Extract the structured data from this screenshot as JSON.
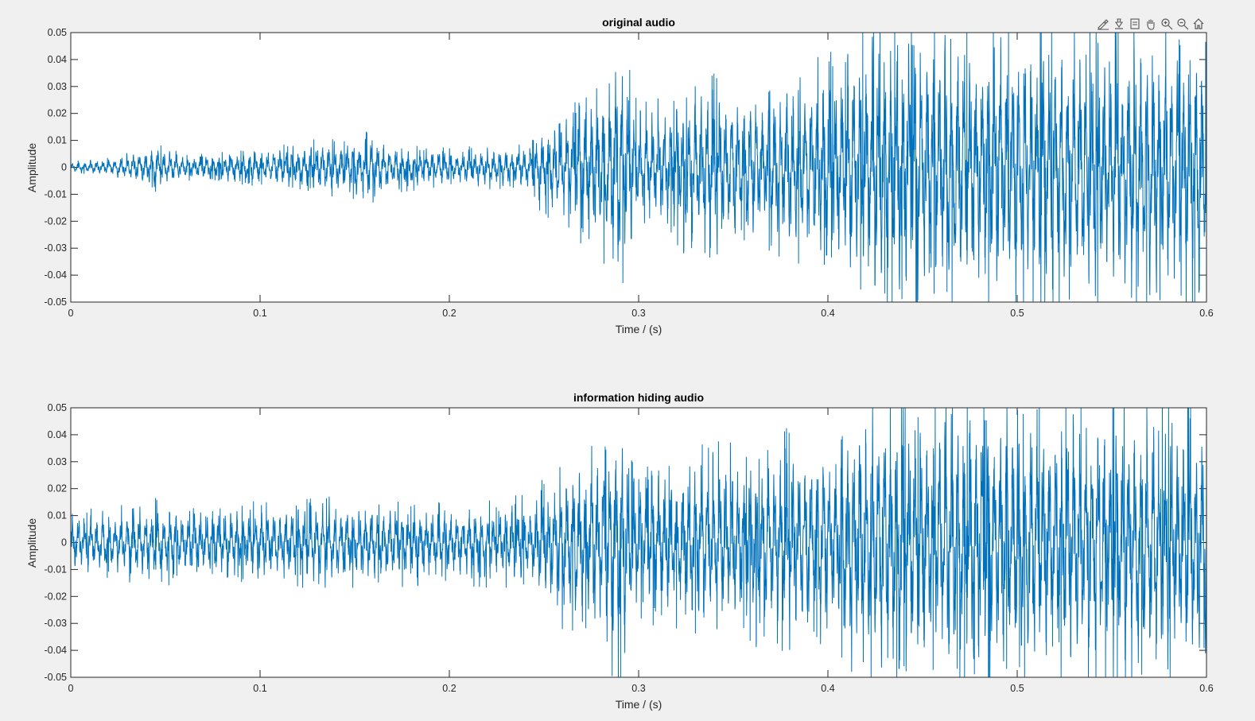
{
  "toolbar": {
    "items": [
      {
        "icon": "brush-icon",
        "label": "Brush/Select data"
      },
      {
        "icon": "data-tips-icon",
        "label": "Data tips"
      },
      {
        "icon": "legend-icon",
        "label": "Insert legend"
      },
      {
        "icon": "pan-icon",
        "label": "Pan"
      },
      {
        "icon": "zoom-in-icon",
        "label": "Zoom in"
      },
      {
        "icon": "zoom-out-icon",
        "label": "Zoom out"
      },
      {
        "icon": "home-icon",
        "label": "Restore view"
      }
    ]
  },
  "colors": {
    "line": "#0072bd",
    "axes_bg": "#ffffff",
    "figure_bg": "#f0f0f0",
    "axis": "#262626"
  },
  "chart_data": [
    {
      "type": "line",
      "title": "original audio",
      "xlabel": "Time / (s)",
      "ylabel": "Amplitude",
      "xlim": [
        0,
        0.6
      ],
      "ylim": [
        -0.05,
        0.05
      ],
      "xticks": [
        0,
        0.1,
        0.2,
        0.3,
        0.4,
        0.5,
        0.6
      ],
      "xtick_labels": [
        "0",
        "0.1",
        "0.2",
        "0.3",
        "0.4",
        "0.5",
        "0.6"
      ],
      "yticks": [
        0.05,
        0.04,
        0.03,
        0.02,
        0.01,
        0,
        -0.01,
        -0.02,
        -0.03,
        -0.04,
        -0.05
      ],
      "ytick_labels": [
        "0.05",
        "0.04",
        "0.03",
        "0.02",
        "0.01",
        "0",
        "-0.01",
        "-0.02",
        "-0.03",
        "-0.04",
        "-0.05"
      ],
      "series": [
        {
          "name": "original audio",
          "envelope_time": [
            0,
            0.02,
            0.04,
            0.045,
            0.06,
            0.1,
            0.14,
            0.16,
            0.17,
            0.2,
            0.24,
            0.25,
            0.26,
            0.28,
            0.29,
            0.3,
            0.31,
            0.33,
            0.35,
            0.4,
            0.42,
            0.45,
            0.5,
            0.55,
            0.6
          ],
          "envelope_amp": [
            0.002,
            0.003,
            0.007,
            0.008,
            0.004,
            0.006,
            0.01,
            0.012,
            0.008,
            0.006,
            0.008,
            0.015,
            0.018,
            0.03,
            0.045,
            0.02,
            0.022,
            0.03,
            0.028,
            0.035,
            0.05,
            0.05,
            0.05,
            0.05,
            0.05
          ]
        }
      ]
    },
    {
      "type": "line",
      "title": "information hiding audio",
      "xlabel": "Time / (s)",
      "ylabel": "Amplitude",
      "xlim": [
        0,
        0.6
      ],
      "ylim": [
        -0.05,
        0.05
      ],
      "xticks": [
        0,
        0.1,
        0.2,
        0.3,
        0.4,
        0.5,
        0.6
      ],
      "xtick_labels": [
        "0",
        "0.1",
        "0.2",
        "0.3",
        "0.4",
        "0.5",
        "0.6"
      ],
      "yticks": [
        0.05,
        0.04,
        0.03,
        0.02,
        0.01,
        0,
        -0.01,
        -0.02,
        -0.03,
        -0.04,
        -0.05
      ],
      "ytick_labels": [
        "0.05",
        "0.04",
        "0.03",
        "0.02",
        "0.01",
        "0",
        "-0.01",
        "-0.02",
        "-0.03",
        "-0.04",
        "-0.05"
      ],
      "series": [
        {
          "name": "information hiding audio",
          "envelope_time": [
            0,
            0.02,
            0.04,
            0.045,
            0.06,
            0.1,
            0.14,
            0.16,
            0.17,
            0.2,
            0.24,
            0.25,
            0.26,
            0.28,
            0.29,
            0.3,
            0.31,
            0.33,
            0.35,
            0.4,
            0.42,
            0.45,
            0.5,
            0.55,
            0.6
          ],
          "envelope_amp": [
            0.011,
            0.011,
            0.014,
            0.015,
            0.012,
            0.013,
            0.015,
            0.015,
            0.014,
            0.013,
            0.015,
            0.02,
            0.028,
            0.035,
            0.046,
            0.025,
            0.026,
            0.032,
            0.032,
            0.038,
            0.05,
            0.05,
            0.05,
            0.05,
            0.05
          ]
        }
      ]
    }
  ]
}
